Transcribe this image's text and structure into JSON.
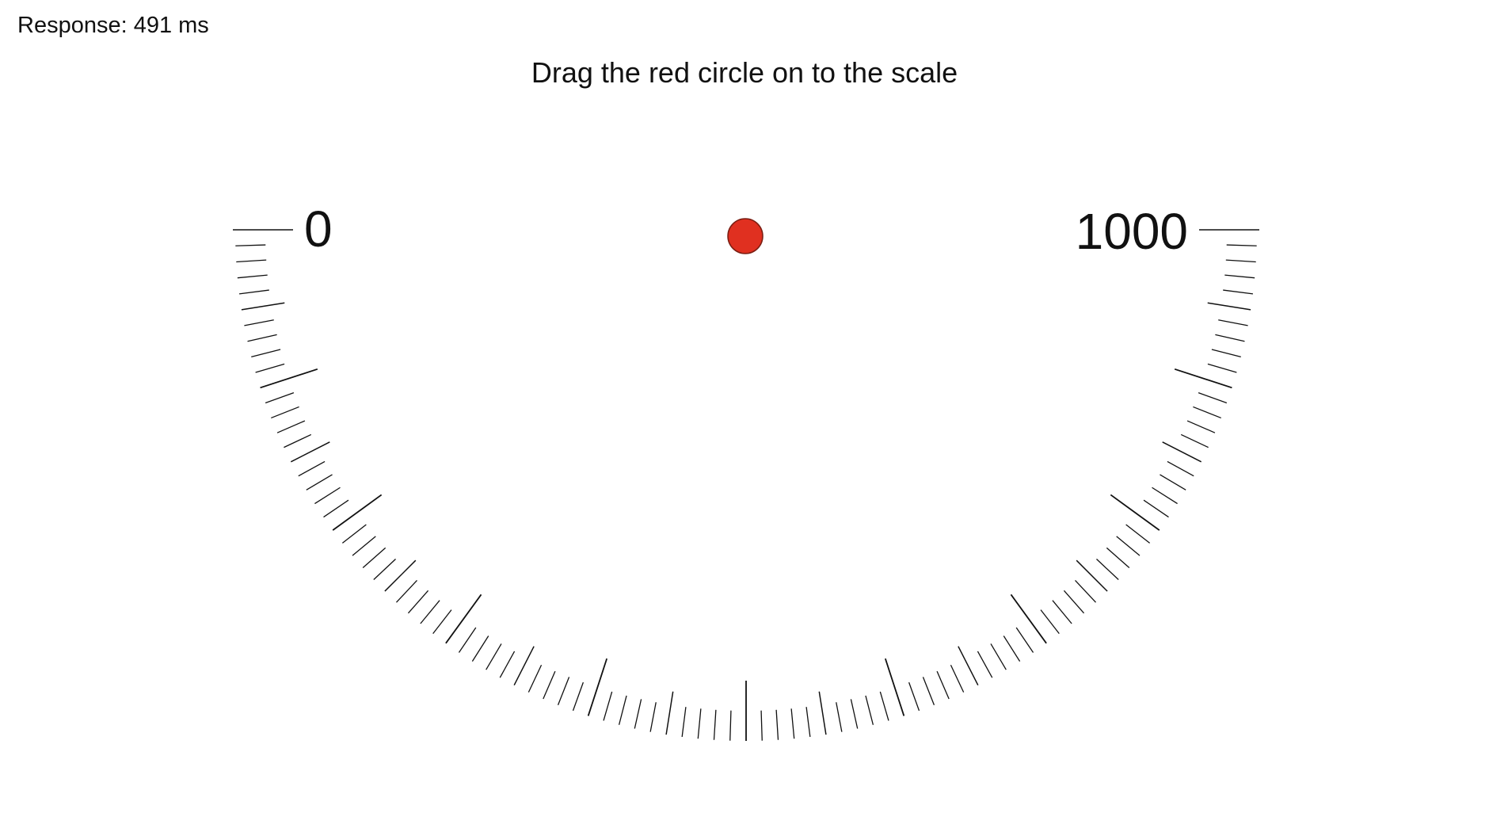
{
  "status": {
    "response_label": "Response: 491 ms"
  },
  "task": {
    "instruction": "Drag the red circle on to the scale"
  },
  "scale": {
    "min_label": "0",
    "max_label": "1000",
    "minor_tick_step": 10,
    "mid_tick_step": 50,
    "major_tick_step": 100
  },
  "marker": {
    "color": "#e03020",
    "outline_color": "#7a1d12"
  },
  "colors": {
    "tick": "#111111",
    "background": "#ffffff"
  }
}
